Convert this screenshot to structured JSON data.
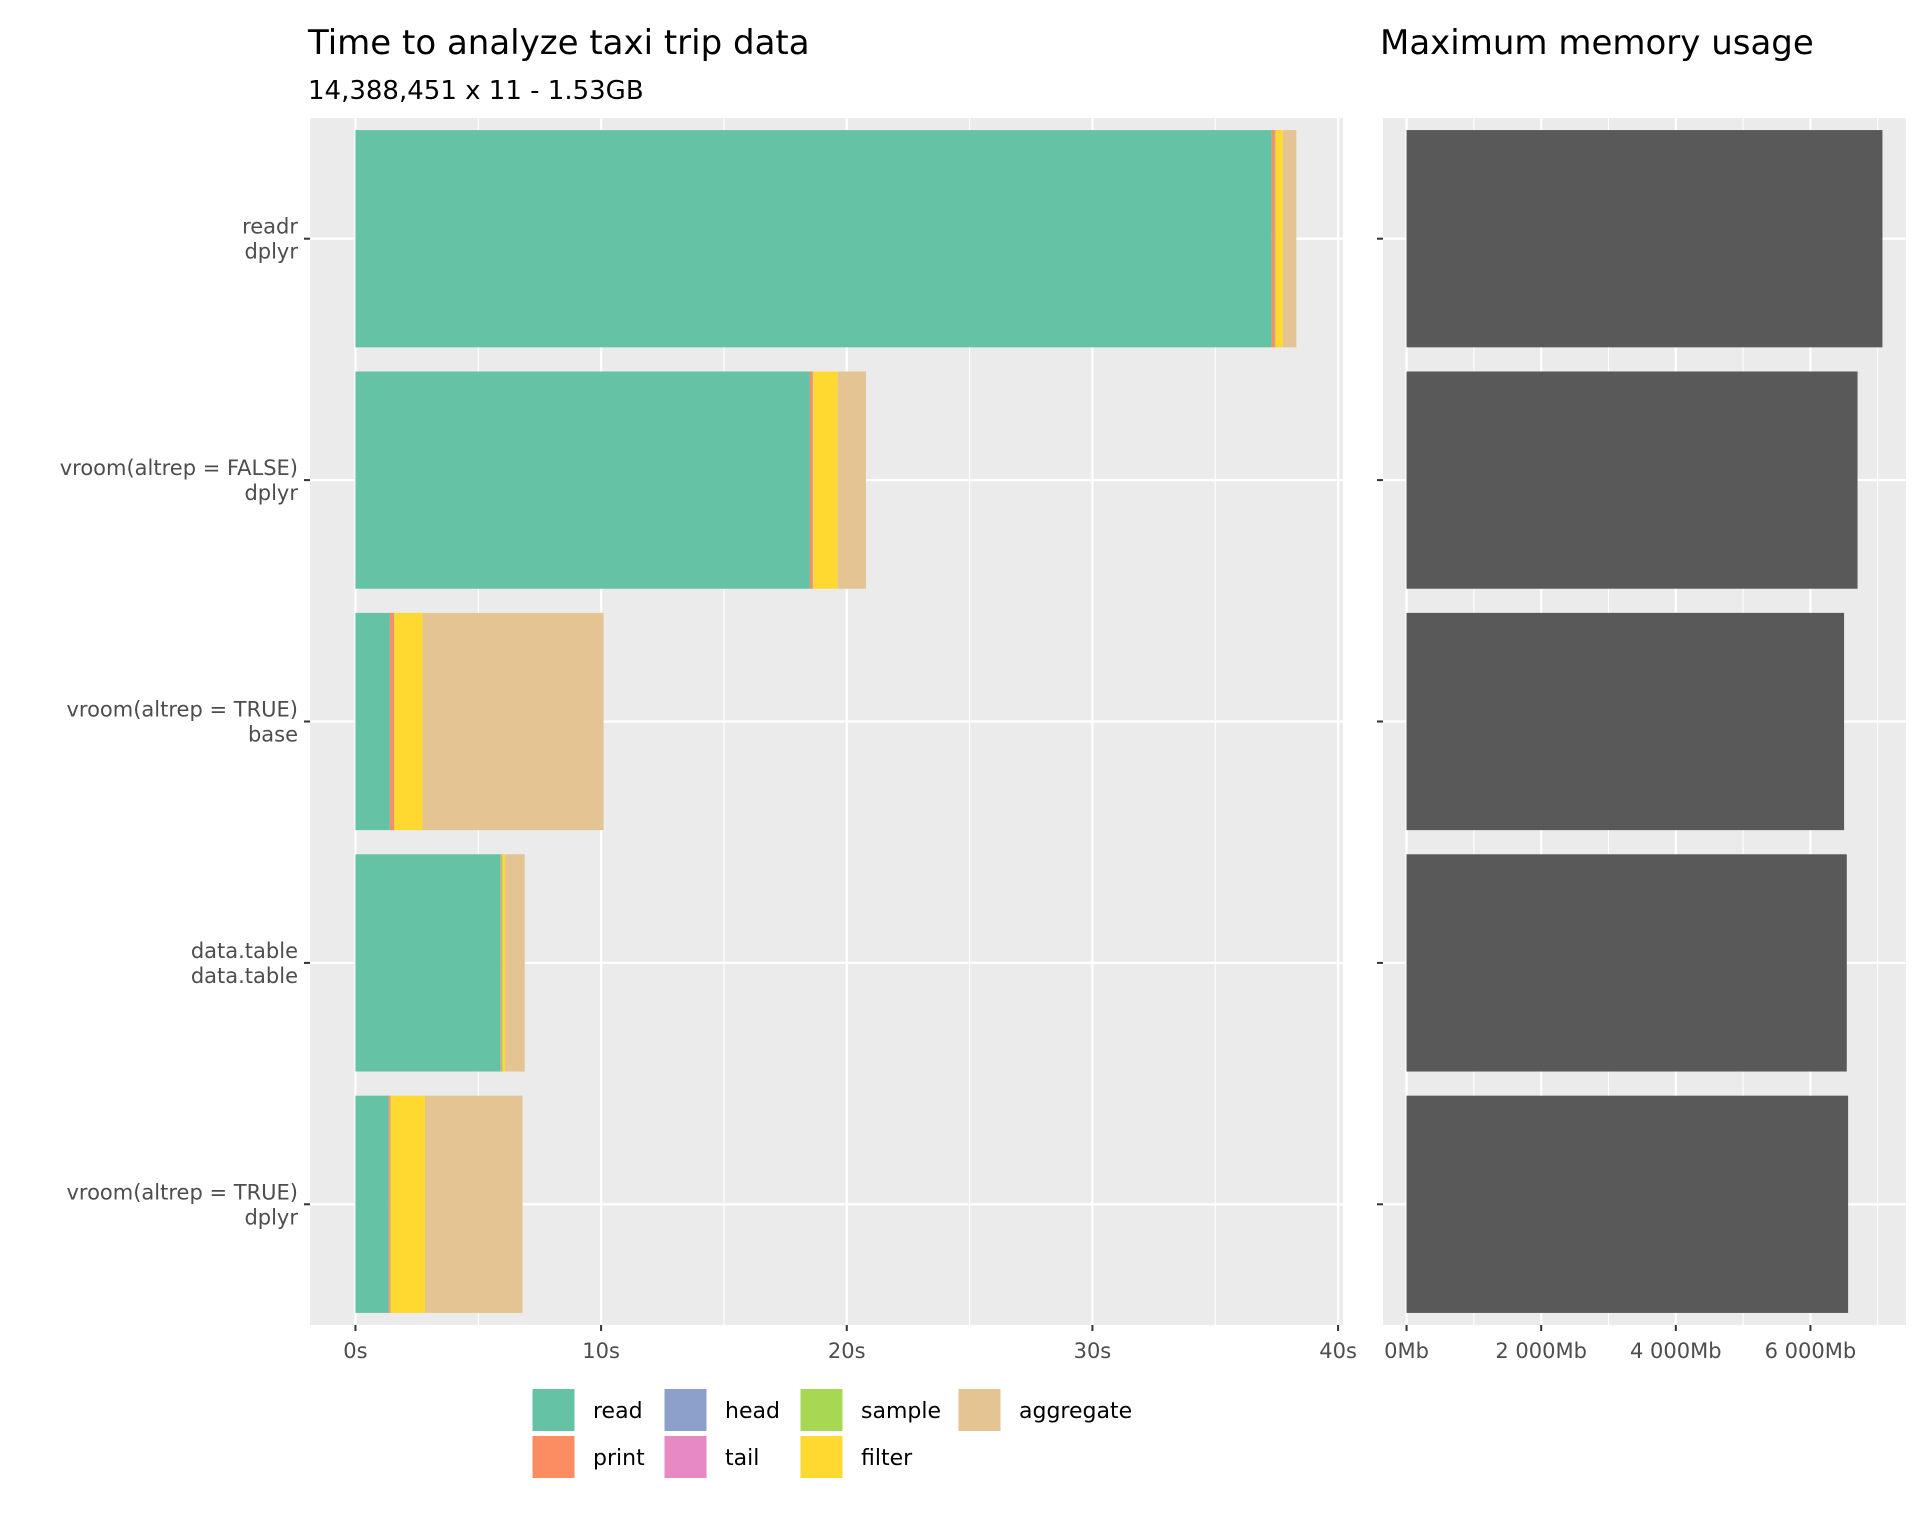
{
  "chart_data": [
    {
      "type": "bar",
      "orientation": "horizontal",
      "stacked": true,
      "title": "Time to analyze taxi trip data",
      "subtitle": "14,388,451 x 11 - 1.53GB",
      "categories": [
        [
          "readr",
          "dplyr"
        ],
        [
          "vroom(altrep = FALSE)",
          "dplyr"
        ],
        [
          "vroom(altrep = TRUE)",
          "base"
        ],
        [
          "data.table",
          "data.table"
        ],
        [
          "vroom(altrep = TRUE)",
          "dplyr"
        ]
      ],
      "series": [
        {
          "name": "read",
          "color": "#66c2a5",
          "values": [
            37.3,
            18.5,
            1.4,
            5.9,
            1.35
          ]
        },
        {
          "name": "print",
          "color": "#fc8d62",
          "values": [
            0.12,
            0.1,
            0.15,
            0.02,
            0.05
          ]
        },
        {
          "name": "head",
          "color": "#8da0cb",
          "values": [
            0.01,
            0.01,
            0.01,
            0.01,
            0.01
          ]
        },
        {
          "name": "tail",
          "color": "#e78ac3",
          "values": [
            0.01,
            0.01,
            0.01,
            0.01,
            0.01
          ]
        },
        {
          "name": "sample",
          "color": "#a6d854",
          "values": [
            0.01,
            0.01,
            0.01,
            0.05,
            0.01
          ]
        },
        {
          "name": "filter",
          "color": "#ffd92f",
          "values": [
            0.3,
            1.0,
            1.15,
            0.1,
            1.4
          ]
        },
        {
          "name": "aggregate",
          "color": "#e5c494",
          "values": [
            0.55,
            1.15,
            7.37,
            0.8,
            3.97
          ]
        }
      ],
      "x_ticks": [
        "0s",
        "10s",
        "20s",
        "30s",
        "40s"
      ],
      "x_tick_values": [
        0,
        10,
        20,
        30,
        40
      ],
      "xlim": [
        -1.85,
        40.2
      ]
    },
    {
      "type": "bar",
      "orientation": "horizontal",
      "title": "Maximum memory usage",
      "categories": [
        [
          "readr",
          "dplyr"
        ],
        [
          "vroom(altrep = FALSE)",
          "dplyr"
        ],
        [
          "vroom(altrep = TRUE)",
          "base"
        ],
        [
          "data.table",
          "data.table"
        ],
        [
          "vroom(altrep = TRUE)",
          "dplyr"
        ]
      ],
      "values": [
        7070,
        6700,
        6500,
        6540,
        6560
      ],
      "unit": "Mb",
      "bar_color": "#595959",
      "x_ticks": [
        "0Mb",
        "2 000Mb",
        "4 000Mb",
        "6 000Mb"
      ],
      "x_tick_values": [
        0,
        2000,
        4000,
        6000
      ],
      "xlim": [
        -350,
        7420
      ]
    }
  ],
  "legend": {
    "items": [
      {
        "name": "read",
        "color": "#66c2a5"
      },
      {
        "name": "print",
        "color": "#fc8d62"
      },
      {
        "name": "head",
        "color": "#8da0cb"
      },
      {
        "name": "tail",
        "color": "#e78ac3"
      },
      {
        "name": "sample",
        "color": "#a6d854"
      },
      {
        "name": "filter",
        "color": "#ffd92f"
      },
      {
        "name": "aggregate",
        "color": "#e5c494"
      }
    ]
  },
  "theme": {
    "panel_background": "#ebebeb",
    "grid_color": "#ffffff",
    "tick_text_color": "#4d4d4d"
  }
}
